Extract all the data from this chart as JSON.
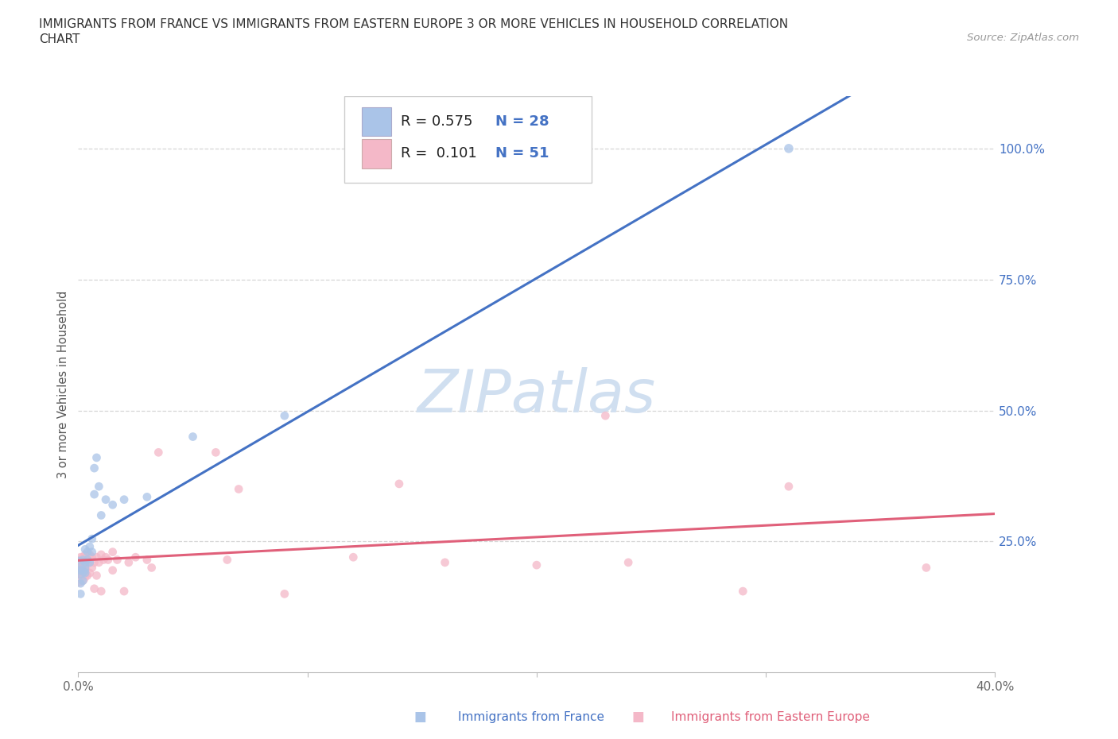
{
  "title_line1": "IMMIGRANTS FROM FRANCE VS IMMIGRANTS FROM EASTERN EUROPE 3 OR MORE VEHICLES IN HOUSEHOLD CORRELATION",
  "title_line2": "CHART",
  "source_text": "Source: ZipAtlas.com",
  "ylabel": "3 or more Vehicles in Household",
  "xlim": [
    0.0,
    0.4
  ],
  "ylim": [
    0.0,
    1.1
  ],
  "france_R": 0.575,
  "france_N": 28,
  "eastern_R": 0.101,
  "eastern_N": 51,
  "france_color": "#aac4e8",
  "france_line_color": "#4472c4",
  "eastern_color": "#f4b8c8",
  "eastern_line_color": "#e0607a",
  "watermark_color": "#d0dff0",
  "background_color": "#ffffff",
  "grid_color": "#cccccc",
  "france_x": [
    0.0,
    0.001,
    0.001,
    0.001,
    0.002,
    0.002,
    0.002,
    0.003,
    0.003,
    0.003,
    0.004,
    0.004,
    0.005,
    0.005,
    0.006,
    0.006,
    0.007,
    0.007,
    0.008,
    0.009,
    0.01,
    0.012,
    0.015,
    0.02,
    0.03,
    0.05,
    0.09,
    0.31
  ],
  "france_y": [
    0.2,
    0.15,
    0.17,
    0.195,
    0.175,
    0.195,
    0.215,
    0.21,
    0.235,
    0.19,
    0.215,
    0.23,
    0.21,
    0.24,
    0.23,
    0.255,
    0.34,
    0.39,
    0.41,
    0.355,
    0.3,
    0.33,
    0.32,
    0.33,
    0.335,
    0.45,
    0.49,
    1.0
  ],
  "eastern_x": [
    0.0,
    0.0,
    0.001,
    0.001,
    0.001,
    0.001,
    0.002,
    0.002,
    0.002,
    0.003,
    0.003,
    0.003,
    0.004,
    0.004,
    0.005,
    0.005,
    0.005,
    0.006,
    0.006,
    0.007,
    0.007,
    0.008,
    0.008,
    0.009,
    0.01,
    0.01,
    0.011,
    0.012,
    0.013,
    0.015,
    0.015,
    0.017,
    0.02,
    0.022,
    0.025,
    0.03,
    0.032,
    0.035,
    0.06,
    0.065,
    0.07,
    0.09,
    0.12,
    0.14,
    0.16,
    0.2,
    0.23,
    0.24,
    0.29,
    0.31,
    0.37
  ],
  "eastern_y": [
    0.185,
    0.2,
    0.195,
    0.2,
    0.21,
    0.22,
    0.185,
    0.205,
    0.22,
    0.195,
    0.21,
    0.225,
    0.185,
    0.215,
    0.19,
    0.21,
    0.225,
    0.2,
    0.22,
    0.16,
    0.21,
    0.185,
    0.22,
    0.21,
    0.155,
    0.225,
    0.215,
    0.22,
    0.215,
    0.195,
    0.23,
    0.215,
    0.155,
    0.21,
    0.22,
    0.215,
    0.2,
    0.42,
    0.42,
    0.215,
    0.35,
    0.15,
    0.22,
    0.36,
    0.21,
    0.205,
    0.49,
    0.21,
    0.155,
    0.355,
    0.2
  ],
  "france_sizes": [
    400,
    60,
    60,
    60,
    60,
    60,
    60,
    60,
    60,
    60,
    60,
    60,
    60,
    60,
    60,
    60,
    60,
    60,
    60,
    60,
    60,
    60,
    60,
    60,
    60,
    60,
    60,
    70
  ],
  "eastern_sizes": [
    400,
    400,
    60,
    60,
    60,
    60,
    60,
    60,
    60,
    60,
    60,
    60,
    60,
    60,
    60,
    60,
    60,
    60,
    60,
    60,
    60,
    60,
    60,
    60,
    60,
    60,
    60,
    60,
    60,
    60,
    60,
    60,
    60,
    60,
    60,
    60,
    60,
    60,
    60,
    60,
    60,
    60,
    60,
    60,
    60,
    60,
    60,
    60,
    60,
    60,
    60
  ]
}
